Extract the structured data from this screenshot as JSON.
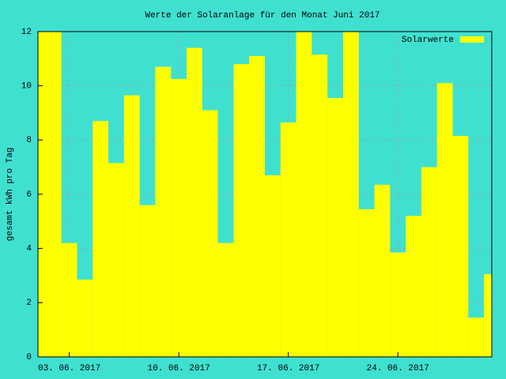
{
  "chart_data": {
    "type": "bar",
    "title": "Werte der Solaranlage für den Monat Juni 2017",
    "y_label": "gesamt kWh pro Tag",
    "series": [
      {
        "name": "Solarwerte",
        "color": "#ffff00",
        "values": [
          12,
          12,
          4.2,
          2.85,
          8.7,
          7.15,
          9.65,
          5.6,
          10.7,
          10.25,
          11.4,
          9.1,
          4.2,
          10.8,
          11.1,
          6.7,
          8.65,
          12,
          11.15,
          9.55,
          12,
          5.45,
          6.35,
          3.85,
          5.2,
          7.0,
          10.1,
          8.15,
          1.45,
          3.05
        ]
      }
    ],
    "x": [
      "2017-06-01",
      "2017-06-02",
      "2017-06-03",
      "2017-06-04",
      "2017-06-05",
      "2017-06-06",
      "2017-06-07",
      "2017-06-08",
      "2017-06-09",
      "2017-06-10",
      "2017-06-11",
      "2017-06-12",
      "2017-06-13",
      "2017-06-14",
      "2017-06-15",
      "2017-06-16",
      "2017-06-17",
      "2017-06-18",
      "2017-06-19",
      "2017-06-20",
      "2017-06-21",
      "2017-06-22",
      "2017-06-23",
      "2017-06-24",
      "2017-06-25",
      "2017-06-26",
      "2017-06-27",
      "2017-06-28",
      "2017-06-29",
      "2017-06-30"
    ],
    "xlim": [
      "2017-06-01",
      "2017-06-30"
    ],
    "xticks": [
      {
        "value": "2017-06-03",
        "label": "03. 06. 2017"
      },
      {
        "value": "2017-06-10",
        "label": "10. 06. 2017"
      },
      {
        "value": "2017-06-17",
        "label": "17. 06. 2017"
      },
      {
        "value": "2017-06-24",
        "label": "24. 06. 2017"
      }
    ],
    "ylim": [
      0,
      12
    ],
    "yticks": [
      0,
      2,
      4,
      6,
      8,
      10,
      12
    ],
    "grid": true,
    "legend": "top-right"
  }
}
